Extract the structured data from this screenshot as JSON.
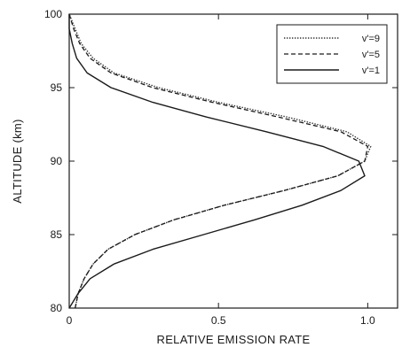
{
  "chart_data": {
    "type": "line",
    "xlabel": "RELATIVE EMISSION RATE",
    "ylabel": "ALTITUDE  (km)",
    "xlim": [
      0,
      1.1
    ],
    "ylim": [
      80,
      100
    ],
    "x_ticks": [
      {
        "value": 0,
        "label": "0"
      },
      {
        "value": 0.5,
        "label": "0.5"
      },
      {
        "value": 1.0,
        "label": "1.0"
      }
    ],
    "y_ticks": [
      {
        "value": 80,
        "label": "80"
      },
      {
        "value": 85,
        "label": "85"
      },
      {
        "value": 90,
        "label": "90"
      },
      {
        "value": 95,
        "label": "95"
      },
      {
        "value": 100,
        "label": "100"
      }
    ],
    "grid": false,
    "legend": {
      "placement": "top-right"
    },
    "series": [
      {
        "name": "v'=9",
        "style": "dotted",
        "points": [
          [
            0.02,
            80
          ],
          [
            0.03,
            81
          ],
          [
            0.05,
            82
          ],
          [
            0.08,
            83
          ],
          [
            0.13,
            84
          ],
          [
            0.22,
            85
          ],
          [
            0.35,
            86
          ],
          [
            0.52,
            87
          ],
          [
            0.72,
            88
          ],
          [
            0.9,
            89
          ],
          [
            0.99,
            90
          ],
          [
            1.01,
            91
          ],
          [
            0.93,
            92
          ],
          [
            0.73,
            93
          ],
          [
            0.5,
            94
          ],
          [
            0.3,
            95
          ],
          [
            0.15,
            96
          ],
          [
            0.08,
            97
          ],
          [
            0.04,
            98
          ],
          [
            0.02,
            99
          ],
          [
            0.0,
            100
          ]
        ]
      },
      {
        "name": "v'=5",
        "style": "dashed",
        "points": [
          [
            0.02,
            80
          ],
          [
            0.03,
            81
          ],
          [
            0.05,
            82
          ],
          [
            0.08,
            83
          ],
          [
            0.13,
            84
          ],
          [
            0.22,
            85
          ],
          [
            0.35,
            86
          ],
          [
            0.52,
            87
          ],
          [
            0.72,
            88
          ],
          [
            0.9,
            89
          ],
          [
            0.99,
            90
          ],
          [
            1.0,
            91
          ],
          [
            0.91,
            92
          ],
          [
            0.7,
            93
          ],
          [
            0.48,
            94
          ],
          [
            0.28,
            95
          ],
          [
            0.14,
            96
          ],
          [
            0.07,
            97
          ],
          [
            0.035,
            98
          ],
          [
            0.015,
            99
          ],
          [
            0.0,
            100
          ]
        ]
      },
      {
        "name": "v'=1",
        "style": "solid",
        "points": [
          [
            0.0,
            80
          ],
          [
            0.03,
            81
          ],
          [
            0.07,
            82
          ],
          [
            0.15,
            83
          ],
          [
            0.28,
            84
          ],
          [
            0.45,
            85
          ],
          [
            0.62,
            86
          ],
          [
            0.78,
            87
          ],
          [
            0.91,
            88
          ],
          [
            0.99,
            89
          ],
          [
            0.97,
            90
          ],
          [
            0.85,
            91
          ],
          [
            0.66,
            92
          ],
          [
            0.46,
            93
          ],
          [
            0.28,
            94
          ],
          [
            0.14,
            95
          ],
          [
            0.06,
            96
          ],
          [
            0.025,
            97
          ],
          [
            0.01,
            98
          ],
          [
            0.0,
            99
          ],
          [
            0.0,
            100
          ]
        ]
      }
    ]
  }
}
